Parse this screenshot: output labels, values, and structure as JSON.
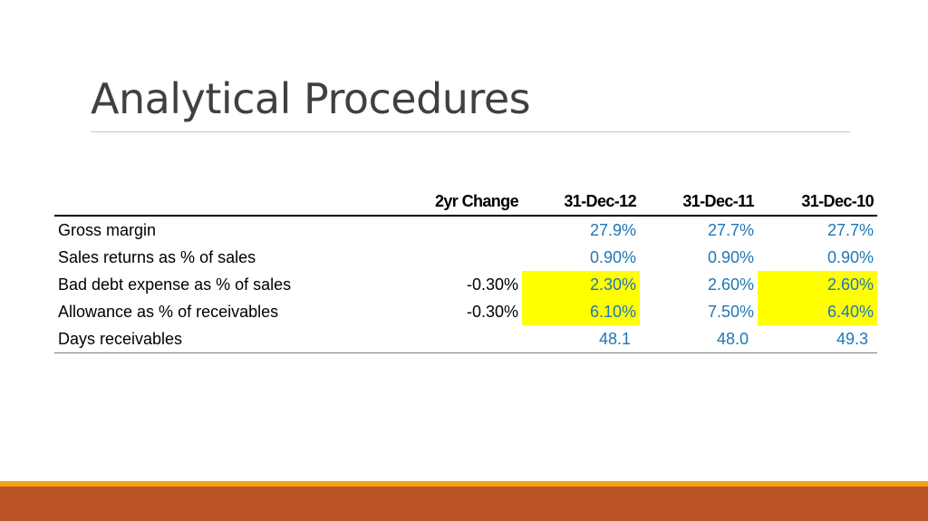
{
  "slide": {
    "title": "Analytical Procedures"
  },
  "table": {
    "headers": [
      "",
      "2yr Change",
      "31-Dec-12",
      "31-Dec-11",
      "31-Dec-10"
    ],
    "rows": [
      {
        "label": "Gross margin",
        "change": "",
        "dec12": "27.9%",
        "dec11": "27.7%",
        "dec10": "27.7%"
      },
      {
        "label": "Sales returns as % of sales",
        "change": "",
        "dec12": "0.90%",
        "dec11": "0.90%",
        "dec10": "0.90%"
      },
      {
        "label": "Bad debt expense as % of sales",
        "change": "-0.30%",
        "dec12": "2.30%",
        "dec11": "2.60%",
        "dec10": "2.60%"
      },
      {
        "label": "Allowance as % of receivables",
        "change": "-0.30%",
        "dec12": "6.10%",
        "dec11": "7.50%",
        "dec10": "6.40%"
      },
      {
        "label": "Days receivables",
        "change": "",
        "dec12": "48.1",
        "dec11": "48.0",
        "dec10": "49.3"
      }
    ]
  },
  "colors": {
    "value_text": "#1f77b4",
    "highlight": "#ffff00",
    "footer_accent": "#f5a219",
    "footer_band": "#bb5327"
  }
}
